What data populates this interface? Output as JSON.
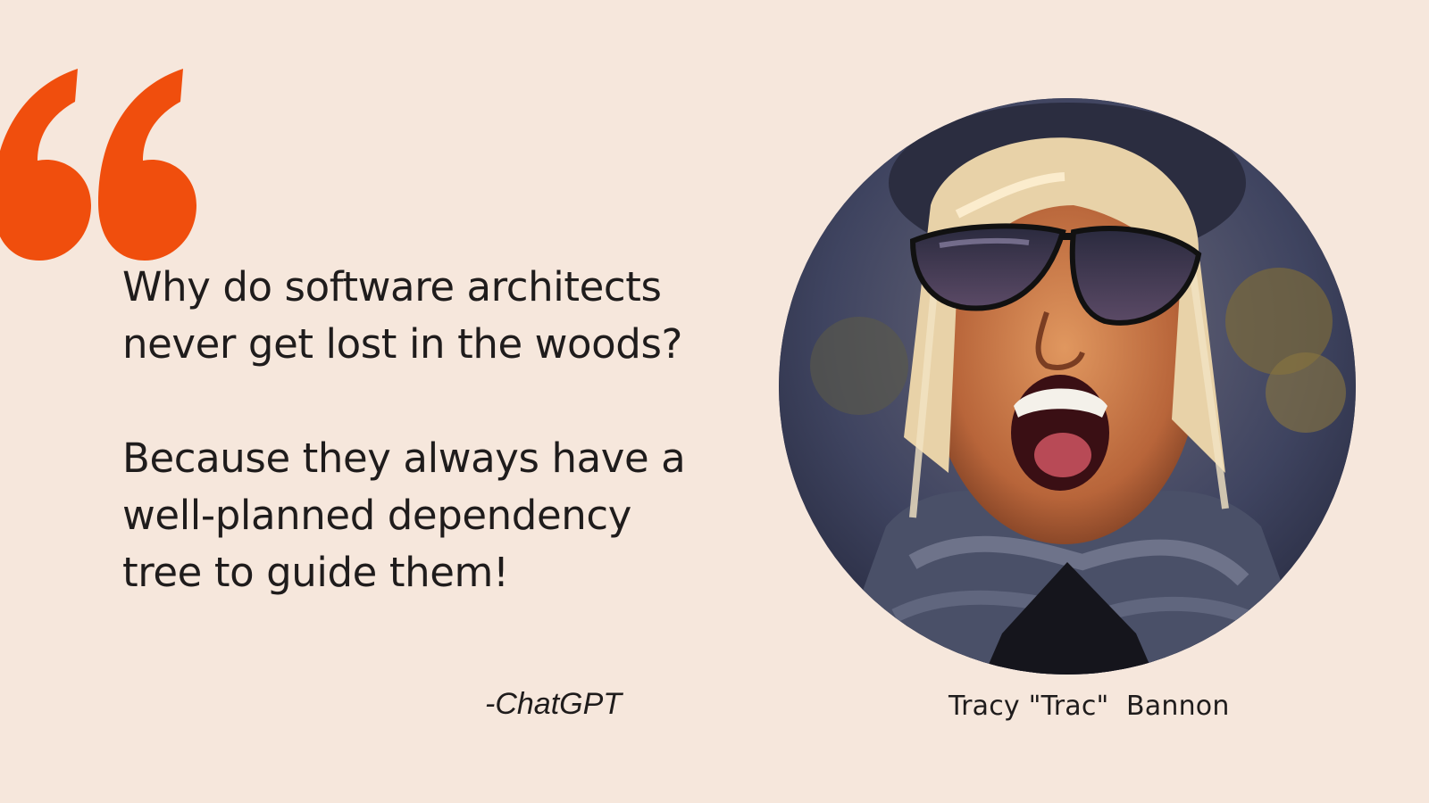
{
  "quote": {
    "question": "Why do software architects\nnever get lost in the woods?",
    "answer": "Because they always have a\nwell-planned dependency\ntree to guide them!",
    "attribution": "-ChatGPT"
  },
  "portrait": {
    "caption": "Tracy \"Trac\"  Bannon"
  },
  "colors": {
    "background": "#f6e7dc",
    "accent": "#f04e0d",
    "text": "#1f1c1c"
  },
  "icons": {
    "quote_mark": "open-quote-icon"
  }
}
